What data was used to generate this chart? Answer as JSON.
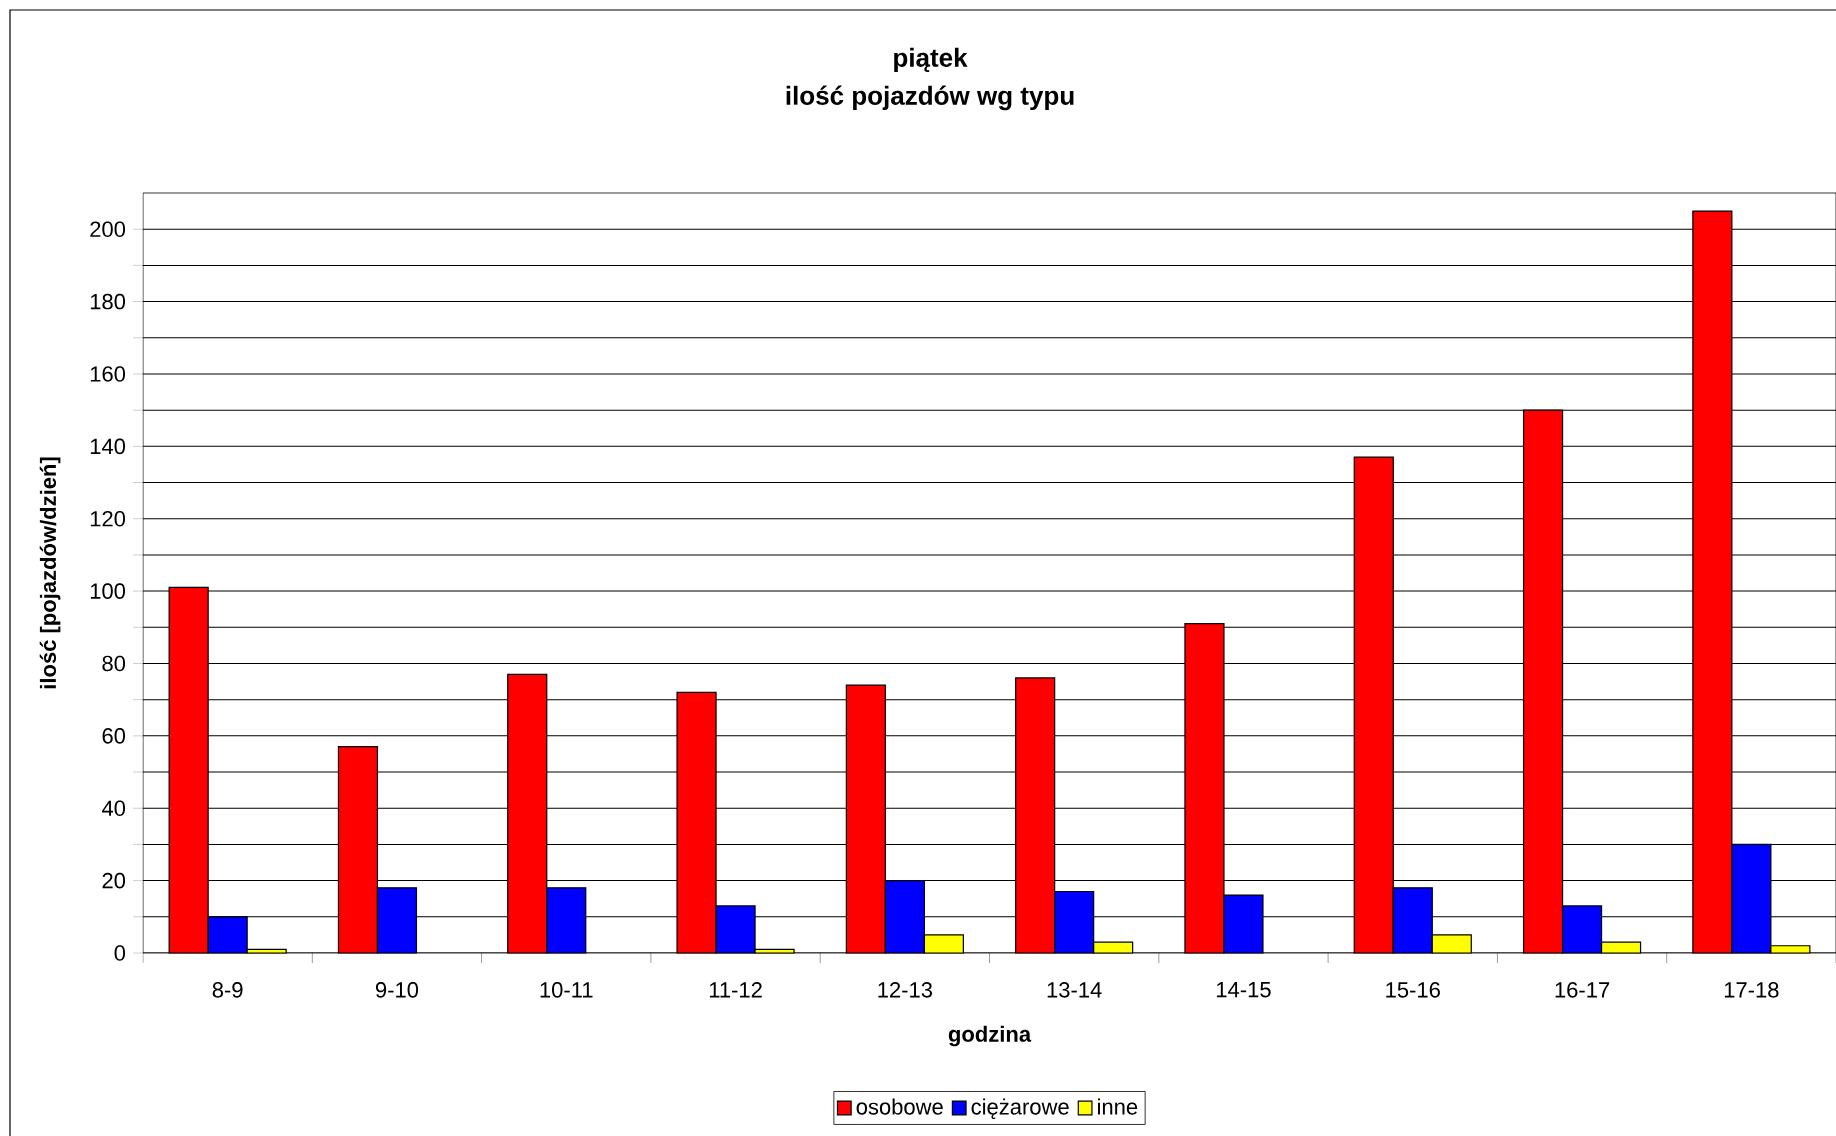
{
  "chart_data": {
    "type": "bar",
    "title": "piątek",
    "subtitle": "ilość pojazdów wg typu",
    "xlabel": "godzina",
    "ylabel": "ilość [pojazdów/dzień]",
    "categories": [
      "8-9",
      "9-10",
      "10-11",
      "11-12",
      "12-13",
      "13-14",
      "14-15",
      "15-16",
      "16-17",
      "17-18"
    ],
    "series": [
      {
        "name": "osobowe",
        "color": "#ff0000",
        "values": [
          101,
          57,
          77,
          72,
          74,
          76,
          91,
          137,
          150,
          205
        ]
      },
      {
        "name": "ciężarowe",
        "color": "#0000ff",
        "values": [
          10,
          18,
          18,
          13,
          20,
          17,
          16,
          18,
          13,
          30
        ]
      },
      {
        "name": "inne",
        "color": "#ffff00",
        "values": [
          1,
          null,
          null,
          1,
          5,
          3,
          null,
          5,
          3,
          2
        ]
      }
    ],
    "ylim": [
      0,
      210
    ],
    "yticks": [
      0,
      {
        "value": 10,
        "label": null
      },
      20,
      {
        "value": 30,
        "label": null
      },
      40,
      {
        "value": 50,
        "label": null
      },
      60,
      {
        "value": 70,
        "label": null
      },
      80,
      {
        "value": 90,
        "label": null
      },
      100,
      {
        "value": 110,
        "label": null
      },
      120,
      {
        "value": 130,
        "label": null
      },
      140,
      {
        "value": 150,
        "label": null
      },
      160,
      {
        "value": 170,
        "label": null
      },
      180,
      {
        "value": 190,
        "label": null
      },
      200
    ],
    "grid": "y",
    "legend": "bottom"
  }
}
